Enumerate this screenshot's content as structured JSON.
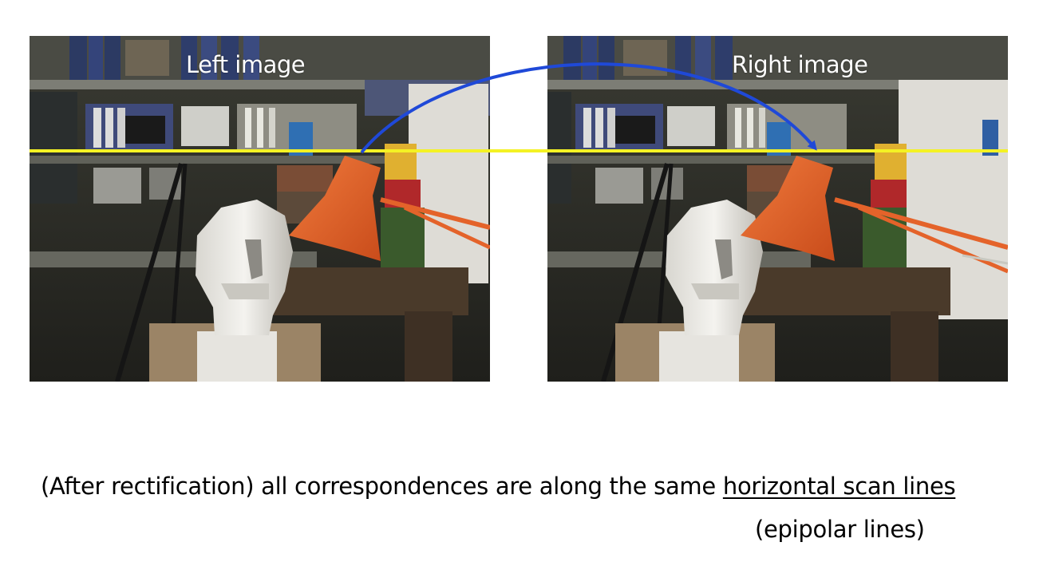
{
  "labels": {
    "left_image": "Left image",
    "right_image": "Right image"
  },
  "caption": {
    "prefix": "(After rectification) all correspondences are along the same ",
    "underlined": "horizontal scan lines",
    "second_line": "(epipolar lines)"
  },
  "colors": {
    "scan_line": "#f4f224",
    "arrow": "#1f49d8",
    "lamp": "#e4632a",
    "background": "#ffffff"
  }
}
